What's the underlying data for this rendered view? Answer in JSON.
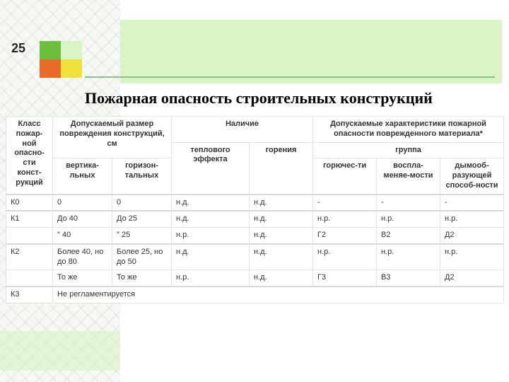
{
  "slide_number": "25",
  "heading": "Пожарная опасность строительных конструкций",
  "colors": {
    "banner": "#d9f4c5",
    "rule": "#8cbf8c",
    "logo": [
      "#6bbf3f",
      "#d9f4c5",
      "#e86b2a",
      "#f0e23c"
    ],
    "border": "#e2e2e2",
    "text": "#333333"
  },
  "header": {
    "col0": "Класс пожар-ной опасно-сти конст-рукций",
    "grp_size": "Допускаемый размер повреждения конструкций, см",
    "grp_presence": "Наличие",
    "grp_char": "Допускаемые характеристики пожарной опасности поврежденного материала*",
    "sub_vert": "вертика-льных",
    "sub_horiz": "горизон-тальных",
    "sub_therm": "теплового эффекта",
    "sub_burn": "горения",
    "sub_group": "группа",
    "sub_flam": "горючес-ти",
    "sub_ignit": "воспла-меняе-мости",
    "sub_smoke": "дымооб-разующей способ-ности"
  },
  "rows": [
    {
      "k": "К0",
      "v": "0",
      "h": "0",
      "t": "н.д.",
      "g": "н.д.",
      "a": "-",
      "b": "-",
      "c": "-"
    },
    {
      "k": "К1",
      "v": "До 40",
      "h": "До 25",
      "t": "н.д.",
      "g": "н.д.",
      "a": "н.р.",
      "b": "н.р.",
      "c": "н.р."
    },
    {
      "k": "",
      "v": "″ 40",
      "h": "″ 25",
      "t": "н.р.",
      "g": "н.д.",
      "a": "Г2",
      "b": "В2",
      "c": "Д2"
    },
    {
      "k": "К2",
      "v": "Более 40, но до 80",
      "h": "Более 25, но до 50",
      "t": "н.д.",
      "g": "н.д.",
      "a": "н.р.",
      "b": "н.р.",
      "c": "н.р."
    },
    {
      "k": "",
      "v": "То же",
      "h": "То же",
      "t": "н.р.",
      "g": "н.д.",
      "a": "Г3",
      "b": "В3",
      "c": "Д2"
    },
    {
      "k": "К3",
      "v": "",
      "h": "",
      "t": "",
      "g": "",
      "a": "",
      "b": "",
      "c": "",
      "merged": "Не регламентируется"
    }
  ]
}
